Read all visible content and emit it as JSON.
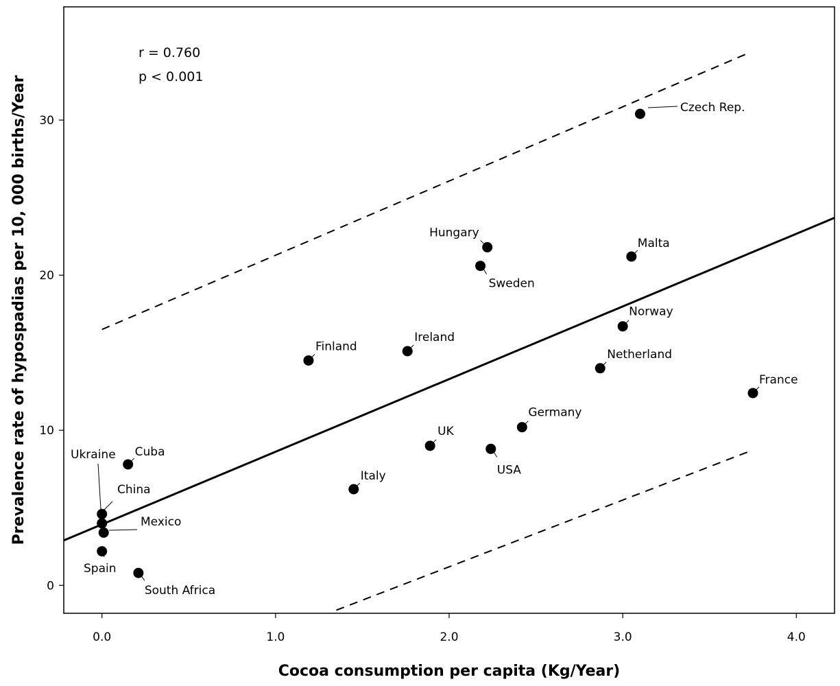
{
  "chart_data": {
    "type": "scatter",
    "xlabel": "Cocoa consumption per capita (Kg/Year)",
    "ylabel": "Prevalence rate of hypospadias per 10, 000 births/Year",
    "xlim": [
      -0.22,
      4.22
    ],
    "ylim": [
      -1.8,
      37.3
    ],
    "x_ticks": [
      0.0,
      1.0,
      2.0,
      3.0,
      4.0
    ],
    "x_tick_labels": [
      "0.0",
      "1.0",
      "2.0",
      "3.0",
      "4.0"
    ],
    "y_ticks": [
      0,
      10,
      20,
      30
    ],
    "y_tick_labels": [
      "0",
      "10",
      "20",
      "30"
    ],
    "grid": false,
    "annotations": [
      "r = 0.760",
      "p < 0.001"
    ],
    "regression_line": {
      "x": [
        -0.22,
        4.22
      ],
      "y": [
        2.9,
        23.7
      ]
    },
    "prediction_bands": {
      "upper": {
        "x": [
          0.0,
          3.72
        ],
        "y": [
          16.5,
          34.3
        ]
      },
      "lower": {
        "x": [
          1.35,
          3.72
        ],
        "y": [
          -1.6,
          8.6
        ]
      }
    },
    "points": [
      {
        "label": "Czech Rep.",
        "x": 3.1,
        "y": 30.4
      },
      {
        "label": "Hungary",
        "x": 2.22,
        "y": 21.8
      },
      {
        "label": "Sweden",
        "x": 2.18,
        "y": 20.6
      },
      {
        "label": "Malta",
        "x": 3.05,
        "y": 21.2
      },
      {
        "label": "Norway",
        "x": 3.0,
        "y": 16.7
      },
      {
        "label": "Finland",
        "x": 1.19,
        "y": 14.5
      },
      {
        "label": "Ireland",
        "x": 1.76,
        "y": 15.1
      },
      {
        "label": "Netherland",
        "x": 2.87,
        "y": 14.0
      },
      {
        "label": "France",
        "x": 3.75,
        "y": 12.4
      },
      {
        "label": "Germany",
        "x": 2.42,
        "y": 10.2
      },
      {
        "label": "UK",
        "x": 1.89,
        "y": 9.0
      },
      {
        "label": "USA",
        "x": 2.24,
        "y": 8.8
      },
      {
        "label": "Italy",
        "x": 1.45,
        "y": 6.2
      },
      {
        "label": "Cuba",
        "x": 0.15,
        "y": 7.8
      },
      {
        "label": "Ukraine",
        "x": 0.0,
        "y": 4.6
      },
      {
        "label": "China",
        "x": 0.0,
        "y": 4.0
      },
      {
        "label": "Mexico",
        "x": 0.01,
        "y": 3.4
      },
      {
        "label": "Spain",
        "x": 0.0,
        "y": 2.2
      },
      {
        "label": "South Africa",
        "x": 0.21,
        "y": 0.8
      }
    ]
  }
}
